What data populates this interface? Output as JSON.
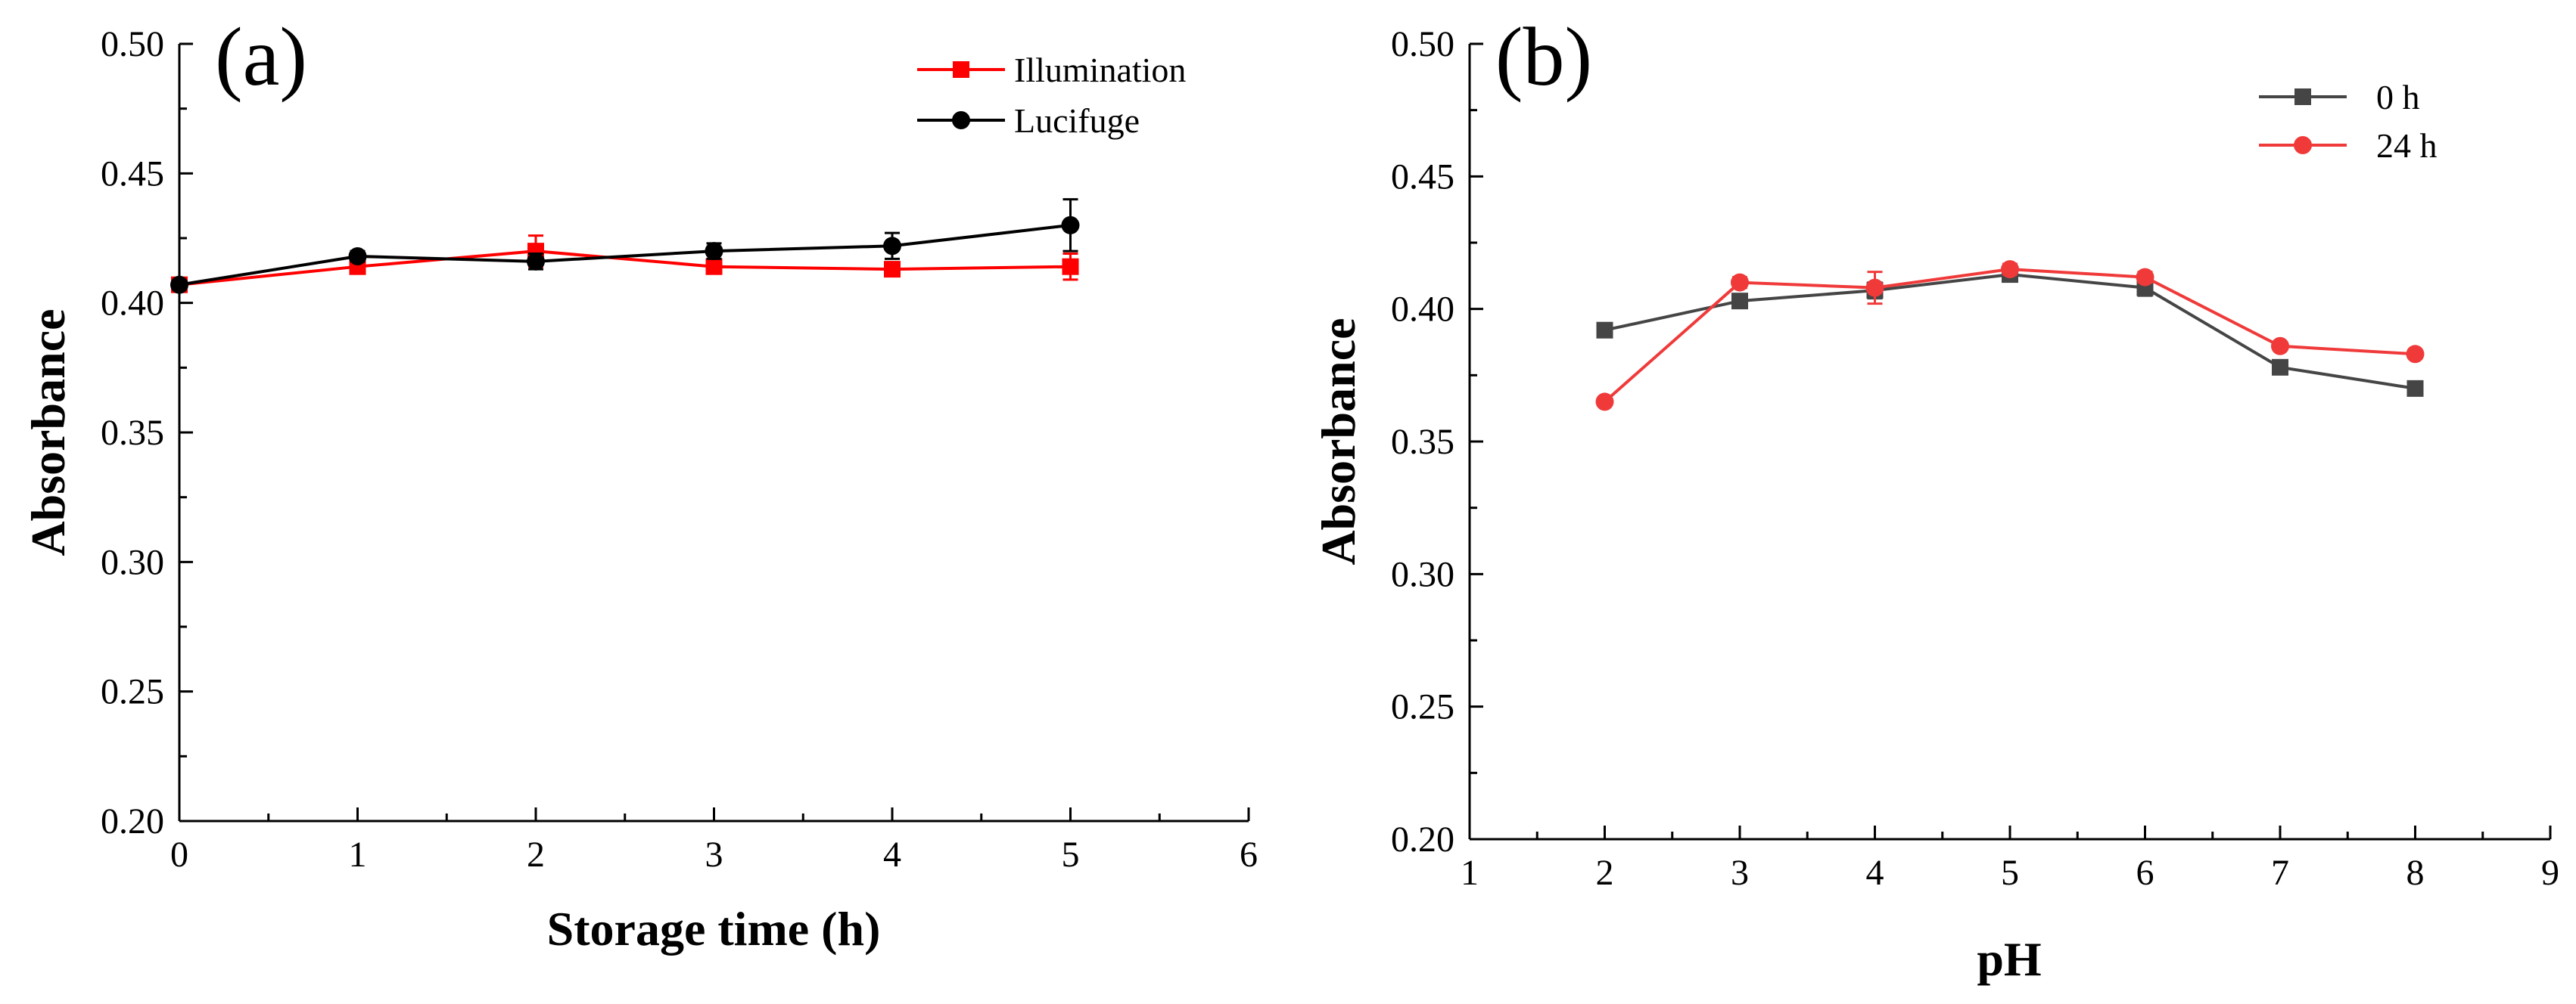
{
  "chart_data": [
    {
      "type": "line",
      "panel_label": "(a)",
      "title": "",
      "xlabel": "Storage time (h)",
      "ylabel": "Absorbance",
      "xlim": [
        0,
        6
      ],
      "ylim": [
        0.2,
        0.5
      ],
      "xticks": [
        0,
        1,
        2,
        3,
        4,
        5,
        6
      ],
      "yticks": [
        0.2,
        0.25,
        0.3,
        0.35,
        0.4,
        0.45,
        0.5
      ],
      "x_tick_labels": [
        "0",
        "1",
        "2",
        "3",
        "4",
        "5",
        "6"
      ],
      "y_tick_labels": [
        "0.20",
        "0.25",
        "0.30",
        "0.35",
        "0.40",
        "0.45",
        "0.50"
      ],
      "legend": "top-right",
      "x": [
        0,
        1,
        2,
        3,
        4,
        5
      ],
      "series": [
        {
          "name": "Illumination",
          "color": "#ff0000",
          "marker": "square",
          "values": [
            0.407,
            0.414,
            0.42,
            0.414,
            0.413,
            0.414
          ],
          "errors": [
            0.001,
            0.002,
            0.006,
            0.002,
            0.002,
            0.005
          ]
        },
        {
          "name": "Lucifuge",
          "color": "#000000",
          "marker": "circle",
          "values": [
            0.407,
            0.418,
            0.416,
            0.42,
            0.422,
            0.43
          ],
          "errors": [
            0.001,
            0.002,
            0.003,
            0.003,
            0.005,
            0.01
          ]
        }
      ]
    },
    {
      "type": "line",
      "panel_label": "(b)",
      "title": "",
      "xlabel": "pH",
      "ylabel": "Absorbance",
      "xlim": [
        1,
        9
      ],
      "ylim": [
        0.2,
        0.5
      ],
      "xticks": [
        1,
        2,
        3,
        4,
        5,
        6,
        7,
        8,
        9
      ],
      "yticks": [
        0.2,
        0.25,
        0.3,
        0.35,
        0.4,
        0.45,
        0.5
      ],
      "x_tick_labels": [
        "1",
        "2",
        "3",
        "4",
        "5",
        "6",
        "7",
        "8",
        "9"
      ],
      "y_tick_labels": [
        "0.20",
        "0.25",
        "0.30",
        "0.35",
        "0.40",
        "0.45",
        "0.50"
      ],
      "legend": "top-right",
      "x": [
        2,
        3,
        4,
        5,
        6,
        7,
        8
      ],
      "series": [
        {
          "name": "0 h",
          "color": "#454545",
          "marker": "square",
          "values": [
            0.392,
            0.403,
            0.407,
            0.413,
            0.408,
            0.378,
            0.37
          ],
          "errors": [
            0.001,
            0.002,
            0.003,
            0.002,
            0.003,
            0.001,
            0.001
          ]
        },
        {
          "name": "24 h",
          "color": "#f03a3a",
          "marker": "circle",
          "values": [
            0.365,
            0.41,
            0.408,
            0.415,
            0.412,
            0.386,
            0.383
          ],
          "errors": [
            0.001,
            0.002,
            0.006,
            0.002,
            0.002,
            0.001,
            0.001
          ]
        }
      ]
    }
  ]
}
